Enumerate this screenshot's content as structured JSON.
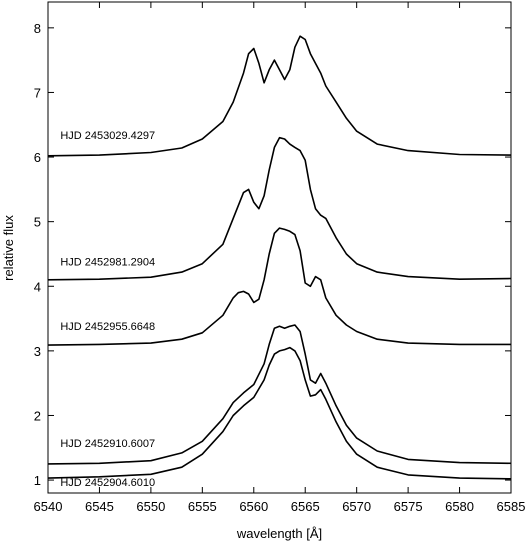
{
  "chart_data": {
    "type": "line",
    "xlabel": "wavelength [Å]",
    "ylabel": "relative flux",
    "xlim": [
      6540,
      6585
    ],
    "ylim": [
      0.8,
      8.4
    ],
    "xticks": [
      6540,
      6545,
      6550,
      6555,
      6560,
      6565,
      6570,
      6575,
      6580,
      6585
    ],
    "yticks": [
      1,
      2,
      3,
      4,
      5,
      6,
      7,
      8
    ],
    "grid": false,
    "legend": "none",
    "line_color": "#000000",
    "series": [
      {
        "name": "HJD 2453029.4297",
        "label_at": [
          6541.2,
          6.28
        ],
        "x": [
          6540,
          6545,
          6550,
          6553,
          6555,
          6557,
          6558,
          6559,
          6559.5,
          6560,
          6560.5,
          6561,
          6561.5,
          6562,
          6562.5,
          6563,
          6563.5,
          6564,
          6564.5,
          6565,
          6565.5,
          6566,
          6566.5,
          6567,
          6568,
          6569,
          6570,
          6572,
          6575,
          6580,
          6585
        ],
        "y": [
          6.02,
          6.03,
          6.07,
          6.14,
          6.28,
          6.55,
          6.85,
          7.3,
          7.6,
          7.68,
          7.45,
          7.15,
          7.35,
          7.5,
          7.35,
          7.2,
          7.35,
          7.7,
          7.87,
          7.82,
          7.6,
          7.45,
          7.3,
          7.1,
          6.85,
          6.6,
          6.4,
          6.2,
          6.1,
          6.04,
          6.03
        ]
      },
      {
        "name": "HJD 2452981.2904",
        "label_at": [
          6541.2,
          4.32
        ],
        "x": [
          6540,
          6545,
          6550,
          6553,
          6555,
          6557,
          6558,
          6559,
          6559.5,
          6560,
          6560.5,
          6561,
          6561.5,
          6562,
          6562.5,
          6563,
          6563.5,
          6564,
          6564.5,
          6565,
          6565.5,
          6566,
          6566.5,
          6567,
          6568,
          6569,
          6570,
          6572,
          6575,
          6580,
          6585
        ],
        "y": [
          4.1,
          4.11,
          4.14,
          4.22,
          4.35,
          4.65,
          5.05,
          5.45,
          5.5,
          5.3,
          5.2,
          5.4,
          5.8,
          6.15,
          6.3,
          6.28,
          6.2,
          6.15,
          6.1,
          5.95,
          5.5,
          5.2,
          5.1,
          5.05,
          4.75,
          4.5,
          4.35,
          4.22,
          4.15,
          4.11,
          4.12
        ]
      },
      {
        "name": "HJD 2452955.6648",
        "label_at": [
          6541.2,
          3.32
        ],
        "x": [
          6540,
          6545,
          6550,
          6553,
          6555,
          6557,
          6558,
          6558.5,
          6559,
          6559.5,
          6560,
          6560.5,
          6561,
          6561.5,
          6562,
          6562.5,
          6563,
          6563.5,
          6564,
          6564.5,
          6565,
          6565.5,
          6566,
          6566.5,
          6567,
          6568,
          6569,
          6570,
          6572,
          6575,
          6580,
          6585
        ],
        "y": [
          3.09,
          3.1,
          3.12,
          3.18,
          3.28,
          3.55,
          3.82,
          3.9,
          3.92,
          3.88,
          3.75,
          3.8,
          4.1,
          4.5,
          4.82,
          4.9,
          4.88,
          4.85,
          4.8,
          4.55,
          4.05,
          4.0,
          4.15,
          4.1,
          3.82,
          3.55,
          3.4,
          3.3,
          3.18,
          3.12,
          3.1,
          3.1
        ]
      },
      {
        "name": "HJD 2452910.6007",
        "label_at": [
          6541.2,
          1.51
        ],
        "x": [
          6540,
          6545,
          6550,
          6553,
          6555,
          6557,
          6558,
          6559,
          6560,
          6561,
          6561.5,
          6562,
          6562.5,
          6563,
          6563.5,
          6564,
          6564.5,
          6565,
          6565.5,
          6566,
          6566.5,
          6567,
          6568,
          6569,
          6570,
          6572,
          6575,
          6580,
          6585
        ],
        "y": [
          1.25,
          1.26,
          1.3,
          1.42,
          1.6,
          1.95,
          2.2,
          2.35,
          2.48,
          2.8,
          3.1,
          3.35,
          3.38,
          3.35,
          3.38,
          3.4,
          3.3,
          2.95,
          2.55,
          2.5,
          2.65,
          2.5,
          2.15,
          1.85,
          1.65,
          1.45,
          1.32,
          1.27,
          1.26
        ]
      },
      {
        "name": "HJD 2452904.6010",
        "label_at": [
          6541.2,
          0.91
        ],
        "x": [
          6540,
          6545,
          6550,
          6553,
          6555,
          6557,
          6558,
          6559,
          6560,
          6561,
          6561.5,
          6562,
          6562.5,
          6563,
          6563.5,
          6564,
          6564.5,
          6565,
          6565.5,
          6566,
          6566.5,
          6567,
          6568,
          6569,
          6570,
          6572,
          6575,
          6580,
          6585
        ],
        "y": [
          1.03,
          1.05,
          1.09,
          1.2,
          1.4,
          1.75,
          2.0,
          2.15,
          2.28,
          2.55,
          2.78,
          2.95,
          3.0,
          3.02,
          3.05,
          3.0,
          2.85,
          2.55,
          2.3,
          2.32,
          2.4,
          2.25,
          1.9,
          1.6,
          1.4,
          1.2,
          1.08,
          1.03,
          1.02
        ]
      }
    ]
  }
}
